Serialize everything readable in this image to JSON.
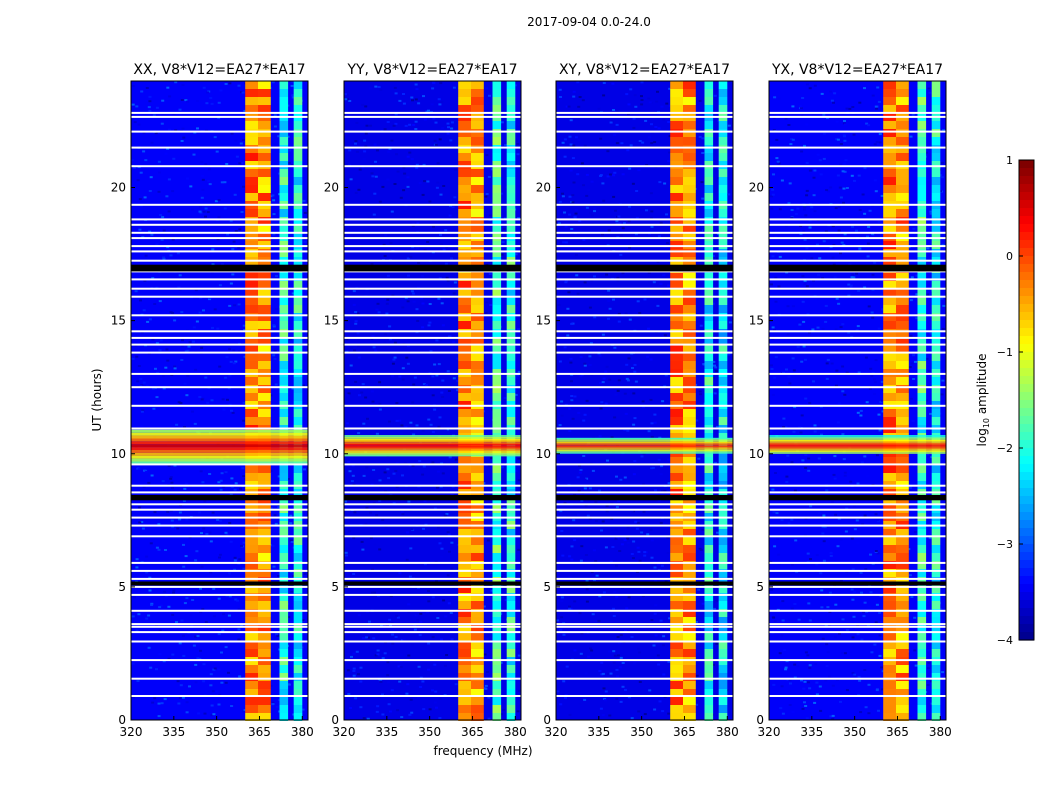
{
  "figure_title": "2017-09-04 0.0-24.0",
  "xlabel": "frequency (MHz)",
  "ylabel": "UT (hours)",
  "colorbar": {
    "label_prefix": "log",
    "label_subscript": "10",
    "label_suffix": " amplitude",
    "ticks": [
      {
        "value": 1,
        "label": "1"
      },
      {
        "value": 0,
        "label": "0"
      },
      {
        "value": -1,
        "label": "−1"
      },
      {
        "value": -2,
        "label": "−2"
      },
      {
        "value": -3,
        "label": "−3"
      },
      {
        "value": -4,
        "label": "−4"
      }
    ],
    "range": [
      -4,
      1
    ],
    "colormap": "jet"
  },
  "chart_data": [
    {
      "type": "heatmap",
      "title": "XX, V8*V12=EA27*EA17",
      "xlim": [
        320,
        382
      ],
      "ylim": [
        0,
        24
      ],
      "xticks": [
        {
          "value": 320,
          "label": "320"
        },
        {
          "value": 335,
          "label": "335"
        },
        {
          "value": 350,
          "label": "350"
        },
        {
          "value": 365,
          "label": "365"
        },
        {
          "value": 380,
          "label": "380"
        }
      ],
      "yticks": [
        {
          "value": 0,
          "label": "0"
        },
        {
          "value": 5,
          "label": "5"
        },
        {
          "value": 10,
          "label": "10"
        },
        {
          "value": 15,
          "label": "15"
        },
        {
          "value": 20,
          "label": "20"
        }
      ],
      "background_log10": -3.4,
      "wideband_rfi": {
        "ut_start": 9.6,
        "ut_end": 10.9,
        "peak_ut": 10.3,
        "peak_log10": 0.6
      },
      "narrowband_rfi": [
        {
          "freq_start": 360,
          "freq_end": 364.5,
          "peak_log10": 0.3
        },
        {
          "freq_start": 364.5,
          "freq_end": 369,
          "peak_log10": 0.2
        },
        {
          "freq_start": 372,
          "freq_end": 375,
          "peak_log10": -1.4
        },
        {
          "freq_start": 377,
          "freq_end": 380,
          "peak_log10": -1.5
        }
      ],
      "flagged_ut": [
        0.9,
        1.55,
        2.25,
        2.95,
        3.3,
        3.5,
        3.6,
        4.1,
        4.7,
        5.0,
        5.15,
        5.3,
        5.6,
        5.9,
        6.9,
        7.3,
        7.6,
        7.9,
        8.1,
        8.35,
        8.55,
        8.8,
        9.6,
        10.95,
        11.8,
        12.5,
        13.0,
        13.8,
        14.1,
        14.35,
        14.6,
        15.2,
        15.9,
        16.2,
        16.55,
        16.85,
        17.0,
        17.25,
        17.6,
        17.8,
        18.1,
        18.3,
        18.6,
        18.8,
        19.35,
        20.8,
        21.5,
        22.1,
        22.65,
        22.8
      ]
    },
    {
      "type": "heatmap",
      "title": "YY, V8*V12=EA27*EA17",
      "xlim": [
        320,
        382
      ],
      "ylim": [
        0,
        24
      ],
      "xticks": [
        {
          "value": 320,
          "label": "320"
        },
        {
          "value": 335,
          "label": "335"
        },
        {
          "value": 350,
          "label": "350"
        },
        {
          "value": 365,
          "label": "365"
        },
        {
          "value": 380,
          "label": "380"
        }
      ],
      "yticks": [
        {
          "value": 0,
          "label": "0"
        },
        {
          "value": 5,
          "label": "5"
        },
        {
          "value": 10,
          "label": "10"
        },
        {
          "value": 15,
          "label": "15"
        },
        {
          "value": 20,
          "label": "20"
        }
      ],
      "background_log10": -3.5,
      "wideband_rfi": {
        "ut_start": 9.9,
        "ut_end": 10.7,
        "peak_ut": 10.3,
        "peak_log10": 0.5
      },
      "narrowband_rfi": [
        {
          "freq_start": 360,
          "freq_end": 364.5,
          "peak_log10": 0.3
        },
        {
          "freq_start": 364.5,
          "freq_end": 369,
          "peak_log10": 0.1
        },
        {
          "freq_start": 372,
          "freq_end": 375,
          "peak_log10": -1.2
        },
        {
          "freq_start": 377,
          "freq_end": 380,
          "peak_log10": -1.4
        }
      ],
      "flagged_ut": [
        0.9,
        1.55,
        2.25,
        2.95,
        3.3,
        3.5,
        3.6,
        4.1,
        4.7,
        5.0,
        5.15,
        5.3,
        5.6,
        5.9,
        6.9,
        7.3,
        7.6,
        7.9,
        8.1,
        8.35,
        8.55,
        8.8,
        9.6,
        10.95,
        11.8,
        12.5,
        13.0,
        13.8,
        14.1,
        14.35,
        14.6,
        15.2,
        15.9,
        16.2,
        16.55,
        16.85,
        17.0,
        17.25,
        17.6,
        17.8,
        18.1,
        18.3,
        18.6,
        18.8,
        19.35,
        20.8,
        21.5,
        22.1,
        22.65,
        22.8
      ]
    },
    {
      "type": "heatmap",
      "title": "XY, V8*V12=EA27*EA17",
      "xlim": [
        320,
        382
      ],
      "ylim": [
        0,
        24
      ],
      "xticks": [
        {
          "value": 320,
          "label": "320"
        },
        {
          "value": 335,
          "label": "335"
        },
        {
          "value": 350,
          "label": "350"
        },
        {
          "value": 365,
          "label": "365"
        },
        {
          "value": 380,
          "label": "380"
        }
      ],
      "yticks": [
        {
          "value": 0,
          "label": "0"
        },
        {
          "value": 5,
          "label": "5"
        },
        {
          "value": 10,
          "label": "10"
        },
        {
          "value": 15,
          "label": "15"
        },
        {
          "value": 20,
          "label": "20"
        }
      ],
      "background_log10": -3.5,
      "wideband_rfi": {
        "ut_start": 10.0,
        "ut_end": 10.6,
        "peak_ut": 10.3,
        "peak_log10": 0.3
      },
      "narrowband_rfi": [
        {
          "freq_start": 360,
          "freq_end": 364.5,
          "peak_log10": 0.3
        },
        {
          "freq_start": 364.5,
          "freq_end": 369,
          "peak_log10": 0.2
        },
        {
          "freq_start": 372,
          "freq_end": 375,
          "peak_log10": -1.5
        },
        {
          "freq_start": 377,
          "freq_end": 380,
          "peak_log10": -1.6
        }
      ],
      "flagged_ut": [
        0.9,
        1.55,
        2.25,
        2.95,
        3.3,
        3.5,
        3.6,
        4.1,
        4.7,
        5.0,
        5.15,
        5.3,
        5.6,
        5.9,
        6.9,
        7.3,
        7.6,
        7.9,
        8.1,
        8.35,
        8.55,
        8.8,
        9.6,
        10.95,
        11.8,
        12.5,
        13.0,
        13.8,
        14.1,
        14.35,
        14.6,
        15.2,
        15.9,
        16.2,
        16.55,
        16.85,
        17.0,
        17.25,
        17.6,
        17.8,
        18.1,
        18.3,
        18.6,
        18.8,
        19.35,
        20.8,
        21.5,
        22.1,
        22.65,
        22.8
      ]
    },
    {
      "type": "heatmap",
      "title": "YX, V8*V12=EA27*EA17",
      "xlim": [
        320,
        382
      ],
      "ylim": [
        0,
        24
      ],
      "xticks": [
        {
          "value": 320,
          "label": "320"
        },
        {
          "value": 335,
          "label": "335"
        },
        {
          "value": 350,
          "label": "350"
        },
        {
          "value": 365,
          "label": "365"
        },
        {
          "value": 380,
          "label": "380"
        }
      ],
      "yticks": [
        {
          "value": 0,
          "label": "0"
        },
        {
          "value": 5,
          "label": "5"
        },
        {
          "value": 10,
          "label": "10"
        },
        {
          "value": 15,
          "label": "15"
        },
        {
          "value": 20,
          "label": "20"
        }
      ],
      "background_log10": -3.4,
      "wideband_rfi": {
        "ut_start": 10.0,
        "ut_end": 10.7,
        "peak_ut": 10.3,
        "peak_log10": 0.4
      },
      "narrowband_rfi": [
        {
          "freq_start": 360,
          "freq_end": 364.5,
          "peak_log10": 0.3
        },
        {
          "freq_start": 364.5,
          "freq_end": 369,
          "peak_log10": 0.2
        },
        {
          "freq_start": 372,
          "freq_end": 375,
          "peak_log10": -1.3
        },
        {
          "freq_start": 377,
          "freq_end": 380,
          "peak_log10": -1.5
        }
      ],
      "flagged_ut": [
        0.9,
        1.55,
        2.25,
        2.95,
        3.3,
        3.5,
        3.6,
        4.1,
        4.7,
        5.0,
        5.15,
        5.3,
        5.6,
        5.9,
        6.9,
        7.3,
        7.6,
        7.9,
        8.1,
        8.35,
        8.55,
        8.8,
        9.6,
        10.95,
        11.8,
        12.5,
        13.0,
        13.8,
        14.1,
        14.35,
        14.6,
        15.2,
        15.9,
        16.2,
        16.55,
        16.85,
        17.0,
        17.25,
        17.6,
        17.8,
        18.1,
        18.3,
        18.6,
        18.8,
        19.35,
        20.8,
        21.5,
        22.1,
        22.65,
        22.8
      ]
    }
  ]
}
